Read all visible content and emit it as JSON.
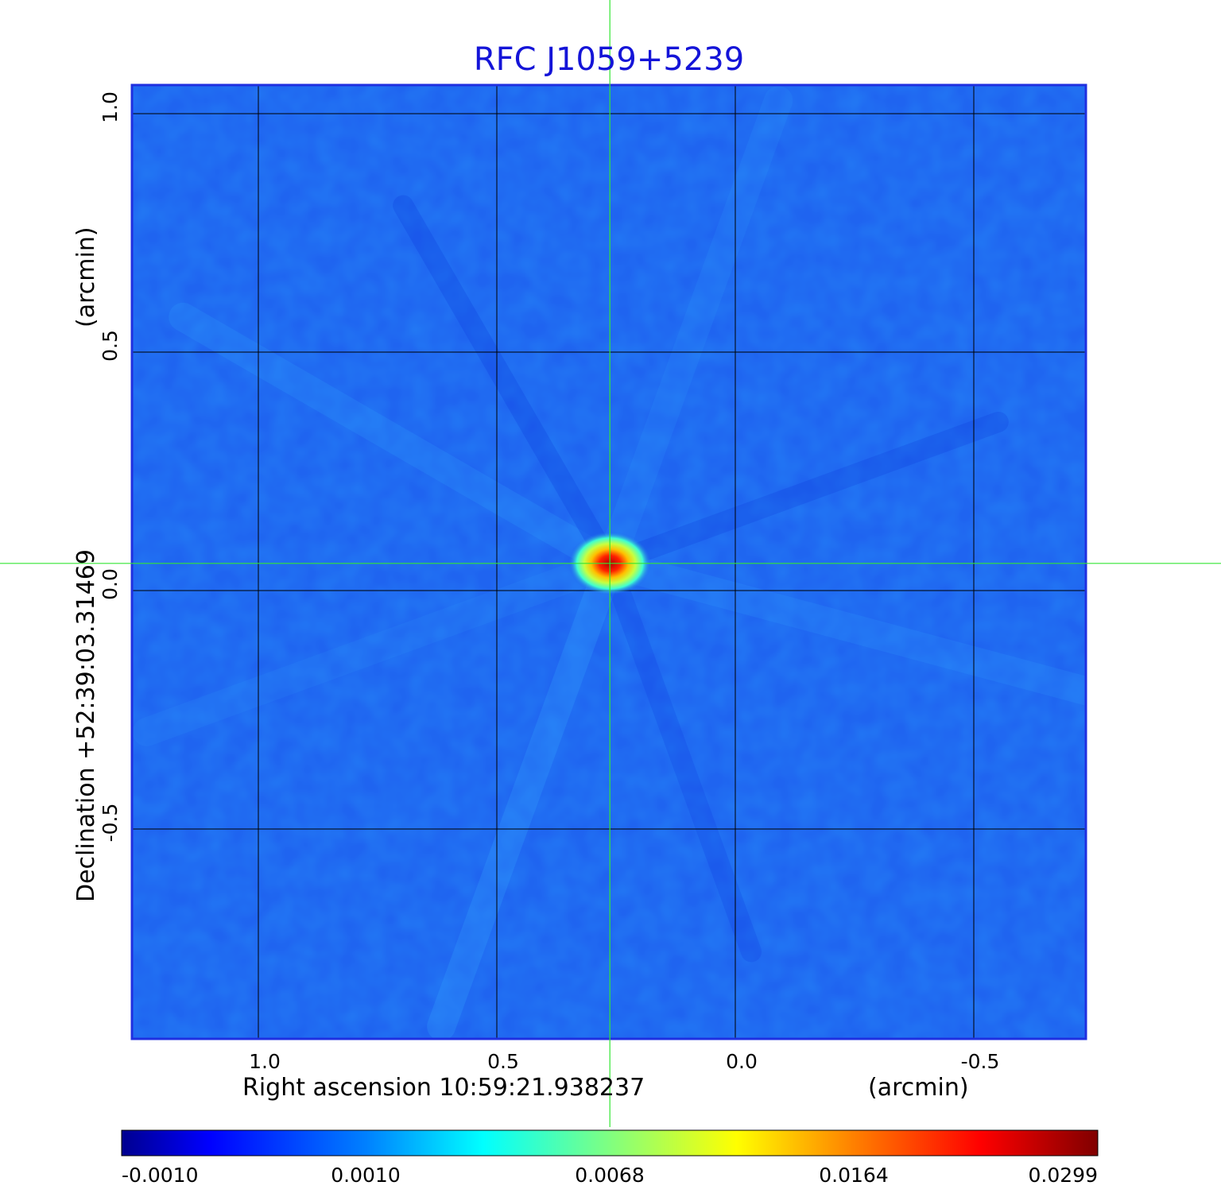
{
  "chart_data": {
    "type": "heatmap",
    "title": "RFC J1059+5239",
    "xlabel": "Right ascension  10:59:21.938237",
    "xlabel_unit": "(arcmin)",
    "ylabel": "Declination  +52:39:03.31469",
    "ylabel_unit": "(arcmin)",
    "x_ticks": [
      "1.0",
      "0.5",
      "0.0",
      "-0.5"
    ],
    "y_ticks": [
      "1.0",
      "0.5",
      "0.0",
      "-0.5"
    ],
    "x_tick_values": [
      1.0,
      0.5,
      0.0,
      -0.5
    ],
    "y_tick_values": [
      1.0,
      0.5,
      0.0,
      -0.5
    ],
    "xlim": [
      1.265,
      -0.735
    ],
    "ylim": [
      -0.94,
      1.06
    ],
    "grid": true,
    "crosshair": {
      "x": 0.263,
      "y": 0.057
    },
    "peak": {
      "x": 0.263,
      "y": 0.057,
      "value": 0.0299
    },
    "colorbar": {
      "colormap": "jet",
      "ticks": [
        "-0.0010",
        "0.0010",
        "0.0068",
        "0.0164",
        "0.0299"
      ]
    },
    "colors": {
      "title": "#1414d8",
      "frame": "#1f2fe0",
      "background_map": "#1f64f0",
      "grid": "#000000",
      "crosshair": "#33e633"
    }
  }
}
